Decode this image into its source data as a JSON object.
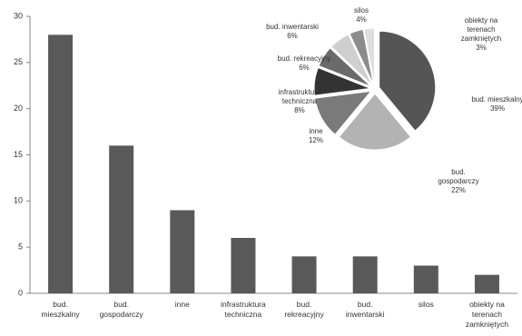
{
  "chart_data": [
    {
      "type": "bar",
      "categories": [
        "bud. mieszkalny",
        "bud. gospodarczy",
        "inne",
        "infrastruktura techniczna",
        "bud. rekreacyjny",
        "bud. inwentarski",
        "silos",
        "obiekty na terenach zamkniętych"
      ],
      "values": [
        28,
        16,
        9,
        6,
        4,
        4,
        3,
        2
      ],
      "color": "#595959",
      "ylim": [
        0,
        30
      ],
      "yticks": [
        0,
        5,
        10,
        15,
        20,
        25,
        30
      ]
    },
    {
      "type": "pie",
      "categories": [
        "bud. mieszkalny",
        "bud. gospodarczy",
        "inne",
        "infrastruktura techniczna",
        "bud. rekreacyjny",
        "bud. inwentarski",
        "silos",
        "obiekty na terenach zamkniętych"
      ],
      "values": [
        39,
        22,
        12,
        8,
        6,
        6,
        4,
        3
      ],
      "value_labels": [
        "39%",
        "22%",
        "12%",
        "8%",
        "6%",
        "6%",
        "4%",
        "3%"
      ],
      "colors": [
        "#555555",
        "#b3b3b3",
        "#7a7a7a",
        "#333333",
        "#6a6a6a",
        "#cfcfcf",
        "#8c8c8c",
        "#dedede"
      ]
    }
  ]
}
